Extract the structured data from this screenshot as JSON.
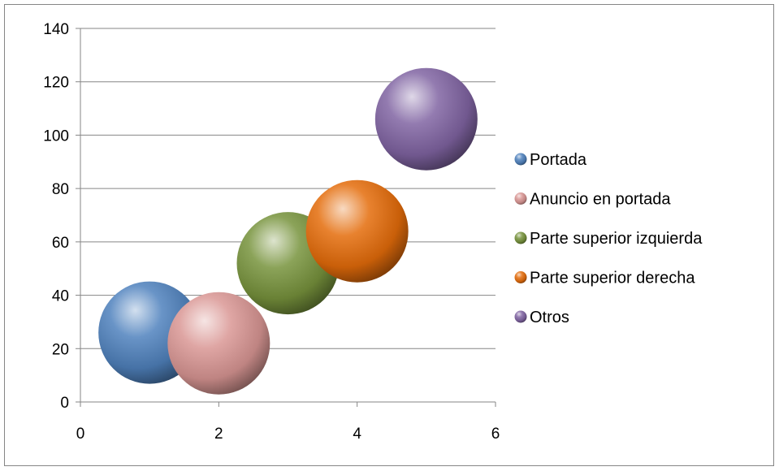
{
  "chart_data": {
    "type": "bubble",
    "title": "",
    "xlabel": "",
    "ylabel": "",
    "xlim": [
      0,
      6
    ],
    "ylim": [
      0,
      140
    ],
    "xticks": [
      0,
      2,
      4,
      6
    ],
    "yticks": [
      0,
      20,
      40,
      60,
      80,
      100,
      120,
      140
    ],
    "grid": {
      "horizontal": true,
      "vertical": false
    },
    "legend_position": "right",
    "series": [
      {
        "name": "Portada",
        "x": 1,
        "y": 26,
        "color": "#4f81bd"
      },
      {
        "name": "Anuncio en portada",
        "x": 2,
        "y": 22,
        "color": "#d99694"
      },
      {
        "name": "Parte superior izquierda",
        "x": 3,
        "y": 52,
        "color": "#77933c"
      },
      {
        "name": "Parte superior derecha",
        "x": 4,
        "y": 64,
        "color": "#e46c0a"
      },
      {
        "name": "Otros",
        "x": 5,
        "y": 106,
        "color": "#8064a2"
      }
    ]
  }
}
